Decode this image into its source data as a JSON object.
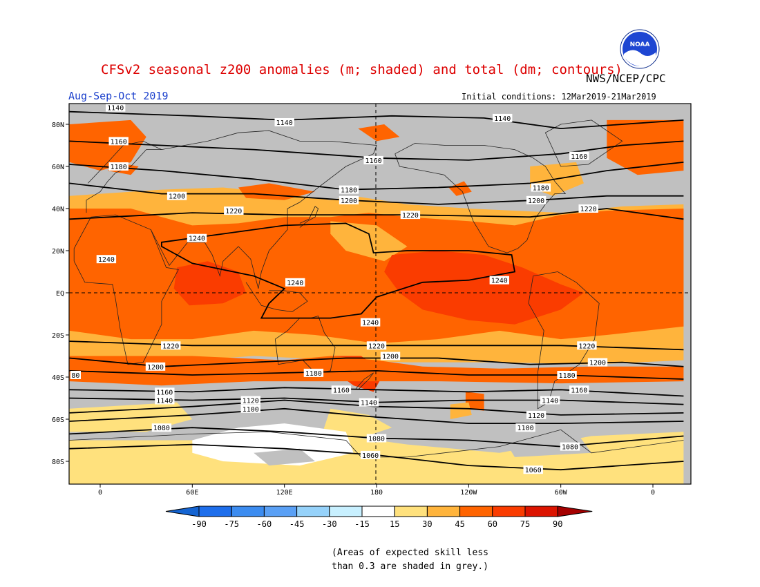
{
  "header": {
    "title": "CFSv2 seasonal z200 anomalies (m; shaded) and total (dm; contours)",
    "season": "Aug-Sep-Oct 2019",
    "agency": "NWS/NCEP/CPC",
    "initial_conditions": "Initial conditions: 12Mar2019-21Mar2019",
    "logo_text": "NOAA"
  },
  "map": {
    "projection": "cylindrical equidistant",
    "lat_labels": [
      "80N",
      "60N",
      "40N",
      "20N",
      "EQ",
      "20S",
      "40S",
      "60S",
      "80S"
    ],
    "lon_labels": [
      "0",
      "60E",
      "120E",
      "180",
      "120W",
      "60W",
      "0"
    ],
    "reference_lines": [
      "EQ",
      "180"
    ],
    "contour_labels": [
      {
        "label": "1140",
        "lon": 10,
        "lat": 88
      },
      {
        "label": "1140",
        "lon": 120,
        "lat": 81
      },
      {
        "label": "1140",
        "lon": 262,
        "lat": 83
      },
      {
        "label": "1160",
        "lon": 12,
        "lat": 72
      },
      {
        "label": "1160",
        "lon": 178,
        "lat": 63
      },
      {
        "label": "1160",
        "lon": 312,
        "lat": 65
      },
      {
        "label": "1180",
        "lon": 12,
        "lat": 60
      },
      {
        "label": "1180",
        "lon": 162,
        "lat": 49
      },
      {
        "label": "1180",
        "lon": 287,
        "lat": 50
      },
      {
        "label": "1200",
        "lon": 50,
        "lat": 46
      },
      {
        "label": "1200",
        "lon": 162,
        "lat": 44
      },
      {
        "label": "1200",
        "lon": 284,
        "lat": 44
      },
      {
        "label": "1220",
        "lon": 87,
        "lat": 39
      },
      {
        "label": "1220",
        "lon": 202,
        "lat": 37
      },
      {
        "label": "1220",
        "lon": 318,
        "lat": 40
      },
      {
        "label": "1240",
        "lon": 63,
        "lat": 26
      },
      {
        "label": "1240",
        "lon": 4,
        "lat": 16
      },
      {
        "label": "1240",
        "lon": 127,
        "lat": 5
      },
      {
        "label": "1240",
        "lon": 260,
        "lat": 6
      },
      {
        "label": "1240",
        "lon": 176,
        "lat": -14
      },
      {
        "label": "1220",
        "lon": 46,
        "lat": -25
      },
      {
        "label": "1220",
        "lon": 180,
        "lat": -25
      },
      {
        "label": "1220",
        "lon": 317,
        "lat": -25
      },
      {
        "label": "1200",
        "lon": 36,
        "lat": -35
      },
      {
        "label": "1200",
        "lon": 189,
        "lat": -30
      },
      {
        "label": "1200",
        "lon": 324,
        "lat": -33
      },
      {
        "label": "80",
        "lon": -16,
        "lat": -39
      },
      {
        "label": "1180",
        "lon": 139,
        "lat": -38
      },
      {
        "label": "1180",
        "lon": 304,
        "lat": -39
      },
      {
        "label": "1160",
        "lon": 42,
        "lat": -47
      },
      {
        "label": "1160",
        "lon": 157,
        "lat": -46
      },
      {
        "label": "1160",
        "lon": 312,
        "lat": -46
      },
      {
        "label": "1140",
        "lon": 42,
        "lat": -51
      },
      {
        "label": "1140",
        "lon": 175,
        "lat": -52
      },
      {
        "label": "1140",
        "lon": 293,
        "lat": -51
      },
      {
        "label": "1120",
        "lon": 98,
        "lat": -51
      },
      {
        "label": "1120",
        "lon": 284,
        "lat": -58
      },
      {
        "label": "1100",
        "lon": 98,
        "lat": -55
      },
      {
        "label": "1100",
        "lon": 277,
        "lat": -64
      },
      {
        "label": "1080",
        "lon": 40,
        "lat": -64
      },
      {
        "label": "1080",
        "lon": 180,
        "lat": -69
      },
      {
        "label": "1080",
        "lon": 306,
        "lat": -73
      },
      {
        "label": "1060",
        "lon": 176,
        "lat": -77
      },
      {
        "label": "1060",
        "lon": 282,
        "lat": -84
      }
    ]
  },
  "colorbar": {
    "tick_labels": [
      "-90",
      "-75",
      "-60",
      "-45",
      "-30",
      "-15",
      "15",
      "30",
      "45",
      "60",
      "75",
      "90"
    ],
    "colors": [
      "#1464d2",
      "#1e6eeb",
      "#3c8cf0",
      "#5aa0f5",
      "#96d2fa",
      "#c8f0ff",
      "#ffffff",
      "#ffe17d",
      "#ffb43c",
      "#ff6400",
      "#fa3c00",
      "#dc1400",
      "#a50000"
    ]
  },
  "footnote": {
    "line1": "(Areas of expected skill less",
    "line2": "than 0.3 are shaded in grey.)"
  }
}
